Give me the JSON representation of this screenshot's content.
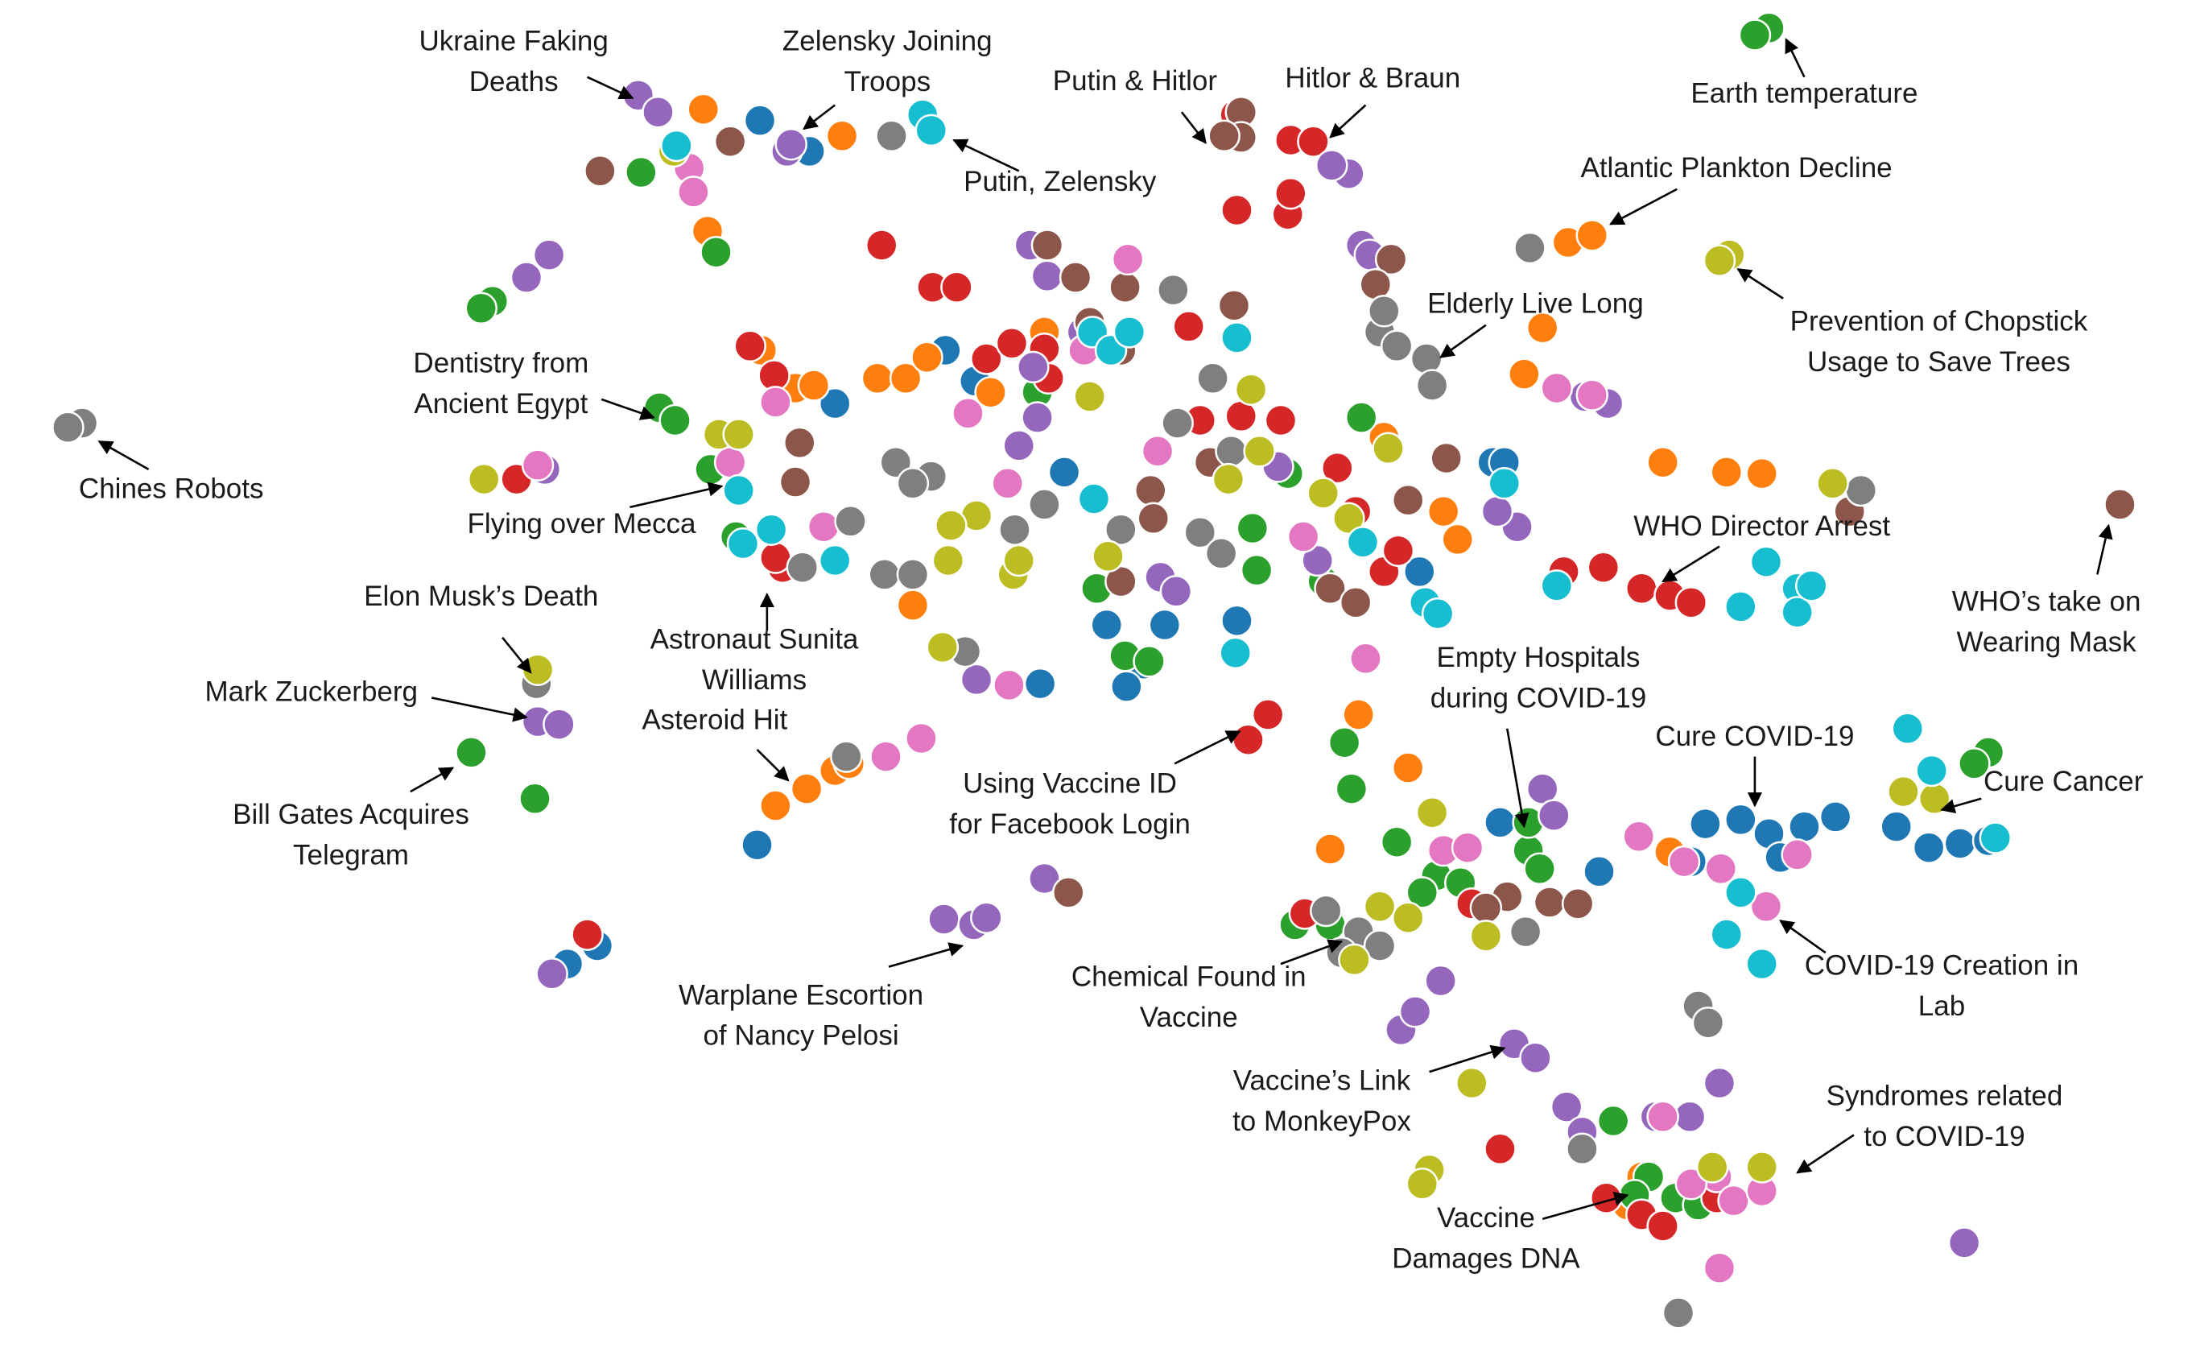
{
  "chart_data": {
    "type": "scatter",
    "series": [
      {
        "color": "#1f77b4",
        "x": [
          537,
          572,
          590,
          668,
          689,
          752,
          823,
          808,
          782,
          796,
          874,
          735,
          535,
          401,
          422,
          1055,
          1063,
          1003,
          1130,
          1060,
          1205,
          1230,
          1250,
          1275,
          1297,
          1340,
          1363,
          1385,
          1405,
          1258,
          1195
        ],
        "values": [
          86,
          108,
          288,
          250,
          272,
          337,
          446,
          474,
          446,
          490,
          443,
          488,
          603,
          688,
          675,
          330,
          330,
          408,
          622,
          587,
          588,
          585,
          595,
          590,
          583,
          590,
          605,
          602,
          600,
          612,
          615
        ]
      },
      {
        "color": "#ff7f0e",
        "x": [
          497,
          595,
          490,
          500,
          1108,
          1125,
          1090,
          1077,
          1175,
          1220,
          1245,
          538,
          562,
          575,
          620,
          640,
          655,
          700,
          738,
          645,
          1020,
          1030,
          548,
          570,
          590,
          600,
          995,
          960,
          940,
          1180,
          1160,
          1150,
          978
        ],
        "values": [
          78,
          97,
          138,
          165,
          173,
          168,
          234,
          267,
          330,
          337,
          338,
          250,
          277,
          275,
          270,
          270,
          255,
          280,
          237,
          432,
          365,
          385,
          575,
          563,
          550,
          545,
          548,
          510,
          606,
          608,
          840,
          860,
          312
        ]
      },
      {
        "color": "#2ca02c",
        "x": [
          1250,
          1240,
          453,
          506,
          348,
          340,
          466,
          477,
          502,
          520,
          733,
          775,
          795,
          812,
          885,
          888,
          910,
          935,
          962,
          950,
          955,
          987,
          1015,
          1032,
          1080,
          1088,
          940,
          915,
          1080,
          1140,
          1165,
          1155,
          1184,
          1200,
          333,
          378,
          1405,
          1395,
          1005
        ],
        "values": [
          20,
          25,
          123,
          180,
          215,
          220,
          291,
          300,
          335,
          383,
          280,
          420,
          468,
          472,
          377,
          407,
          338,
          415,
          298,
          530,
          563,
          601,
          625,
          630,
          607,
          620,
          660,
          660,
          587,
          800,
          840,
          853,
          855,
          860,
          537,
          570,
          537,
          545,
          637
        ]
      },
      {
        "color": "#d62728",
        "x": [
          623,
          659,
          676,
          530,
          547,
          697,
          715,
          738,
          741,
          840,
          848,
          877,
          905,
          874,
          910,
          912,
          873,
          912,
          928,
          945,
          958,
          978,
          988,
          1105,
          1133,
          1160,
          1180,
          1195,
          553,
          548,
          365,
          882,
          896,
          922,
          1060,
          1160,
          1175,
          1135,
          415,
          1040,
          1213
        ],
        "values": [
          175,
          205,
          205,
          247,
          268,
          256,
          245,
          249,
          270,
          233,
          300,
          297,
          300,
          150,
          153,
          138,
          82,
          100,
          101,
          334,
          365,
          408,
          393,
          408,
          405,
          420,
          425,
          430,
          405,
          398,
          342,
          528,
          510,
          652,
          820,
          867,
          875,
          855,
          667,
          645,
          855
        ]
      },
      {
        "color": "#9467bd",
        "x": [
          451,
          465,
          556,
          559,
          388,
          372,
          728,
          740,
          730,
          733,
          720,
          765,
          820,
          831,
          903,
          931,
          962,
          968,
          953,
          941,
          1072,
          1058,
          380,
          395,
          667,
          688,
          697,
          738,
          690,
          1090,
          1098,
          990,
          1000,
          1018,
          1070,
          1085,
          1107,
          1118,
          1170,
          1194,
          1215,
          390,
          1388,
          385,
          1120,
          1136
        ],
        "values": [
          68,
          80,
          108,
          103,
          182,
          198,
          175,
          197,
          262,
          298,
          318,
          237,
          412,
          422,
          333,
          400,
          175,
          182,
          124,
          118,
          376,
          365,
          515,
          517,
          656,
          660,
          655,
          627,
          485,
          563,
          582,
          735,
          722,
          700,
          745,
          755,
          790,
          808,
          797,
          797,
          773,
          695,
          887,
          335,
          283,
          288
        ]
      },
      {
        "color": "#8c564b",
        "x": [
          424,
          516,
          877,
          877,
          865,
          983,
          972,
          740,
          760,
          795,
          770,
          792,
          872,
          855,
          813,
          815,
          565,
          562,
          940,
          958,
          995,
          1022,
          1065,
          1095,
          1115,
          1050,
          755,
          1498,
          1307,
          792
        ],
        "values": [
          122,
          101,
          80,
          98,
          97,
          185,
          203,
          175,
          198,
          205,
          230,
          250,
          218,
          330,
          350,
          370,
          316,
          344,
          420,
          430,
          357,
          327,
          640,
          644,
          645,
          648,
          637,
          360,
          365,
          415
        ]
      },
      {
        "color": "#e377c2",
        "x": [
          487,
          490,
          797,
          766,
          684,
          712,
          818,
          921,
          1100,
          1125,
          380,
          582,
          516,
          548,
          713,
          626,
          651,
          965,
          1020,
          1037,
          1158,
          1190,
          1216,
          1230,
          1248,
          1270,
          1175,
          1213,
          1225,
          1245,
          1215,
          1195
        ],
        "values": [
          120,
          137,
          185,
          250,
          295,
          345,
          322,
          383,
          277,
          282,
          332,
          376,
          330,
          287,
          489,
          540,
          527,
          470,
          607,
          605,
          597,
          615,
          620,
          637,
          647,
          610,
          797,
          840,
          857,
          850,
          905,
          845
        ]
      },
      {
        "color": "#7f7f7f",
        "x": [
          630,
          58,
          48,
          1081,
          829,
          857,
          832,
          870,
          975,
          987,
          1008,
          1012,
          978,
          633,
          658,
          645,
          717,
          738,
          792,
          848,
          863,
          625,
          645,
          601,
          567,
          937,
          960,
          975,
          948,
          1200,
          1207,
          1118,
          1186,
          379,
          1315,
          1078,
          682,
          598
        ],
        "values": [
          97,
          302,
          305,
          177,
          207,
          270,
          302,
          322,
          237,
          247,
          256,
          275,
          222,
          330,
          340,
          345,
          378,
          360,
          378,
          380,
          395,
          410,
          410,
          372,
          405,
          650,
          665,
          675,
          680,
          718,
          730,
          820,
          937,
          488,
          350,
          665,
          465,
          540
        ]
      },
      {
        "color": "#bcbd22",
        "x": [
          1222,
          1215,
          476,
          342,
          508,
          522,
          770,
          690,
          672,
          716,
          720,
          783,
          868,
          884,
          890,
          935,
          953,
          670,
          666,
          957,
          975,
          1012,
          995,
          1050,
          1040,
          1010,
          1005,
          1295,
          1345,
          1367,
          1210,
          1245,
          380,
          981
        ],
        "values": [
          182,
          186,
          108,
          342,
          310,
          310,
          283,
          368,
          375,
          410,
          400,
          397,
          342,
          278,
          322,
          352,
          370,
          400,
          462,
          685,
          647,
          580,
          655,
          668,
          773,
          835,
          845,
          345,
          565,
          570,
          833,
          833,
          478,
          320
        ]
      },
      {
        "color": "#17becf",
        "x": [
          478,
          652,
          658,
          772,
          785,
          798,
          874,
          773,
          873,
          522,
          545,
          525,
          590,
          1100,
          1248,
          1270,
          1270,
          1280,
          1230,
          1007,
          1016,
          963,
          1220,
          1245,
          1230,
          1348,
          1365,
          1410,
          1063
        ],
        "values": [
          104,
          82,
          93,
          237,
          250,
          237,
          241,
          356,
          466,
          350,
          378,
          388,
          400,
          418,
          401,
          420,
          437,
          418,
          433,
          430,
          438,
          387,
          667,
          688,
          637,
          520,
          550,
          598,
          345
        ]
      }
    ],
    "annotations": [
      {
        "lines": [
          "Ukraine Faking",
          "Deaths"
        ],
        "x": 447,
        "y": 70
      },
      {
        "lines": [
          "Zelensky Joining",
          "Troops"
        ],
        "x": 568,
        "y": 92
      },
      {
        "lines": [
          "Putin & Hitlor"
        ],
        "x": 852,
        "y": 102
      },
      {
        "lines": [
          "Hitlor & Braun"
        ],
        "x": 940,
        "y": 98
      },
      {
        "lines": [
          "Putin, Zelensky"
        ],
        "x": 674,
        "y": 100
      },
      {
        "lines": [
          "Earth temperature"
        ],
        "x": 1262,
        "y": 28
      },
      {
        "lines": [
          "Atlantic Plankton Decline"
        ],
        "x": 1138,
        "y": 160
      },
      {
        "lines": [
          "Prevention of Chopstick",
          "Usage to Save Trees"
        ],
        "x": 1228,
        "y": 192
      },
      {
        "lines": [
          "Elderly Live Long"
        ],
        "x": 1018,
        "y": 255
      },
      {
        "lines": [
          "Dentistry from",
          "Ancient Egypt"
        ],
        "x": 462,
        "y": 298
      },
      {
        "lines": [
          "Chines Robots"
        ],
        "x": 70,
        "y": 315
      },
      {
        "lines": [
          "Flying over Mecca"
        ],
        "x": 510,
        "y": 347
      },
      {
        "lines": [
          "WHO Director Arrest"
        ],
        "x": 1175,
        "y": 415
      },
      {
        "lines": [
          "WHO’s take on",
          "Wearing Mask"
        ],
        "x": 1490,
        "y": 375
      },
      {
        "lines": [
          "Elon Musk’s Death"
        ],
        "x": 375,
        "y": 480
      },
      {
        "lines": [
          "Astronaut Sunita",
          "Williams"
        ],
        "x": 542,
        "y": 424
      },
      {
        "lines": [
          "Mark Zuckerberg"
        ],
        "x": 372,
        "y": 512
      },
      {
        "lines": [
          "Empty Hospitals",
          "during COVID-19"
        ],
        "x": 1077,
        "y": 590
      },
      {
        "lines": [
          "Asteroid Hit"
        ],
        "x": 557,
        "y": 557
      },
      {
        "lines": [
          "Cure COVID-19"
        ],
        "x": 1240,
        "y": 575
      },
      {
        "lines": [
          "Cure Cancer"
        ],
        "x": 1372,
        "y": 578
      },
      {
        "lines": [
          "Using Vaccine ID",
          "for Facebook Login"
        ],
        "x": 876,
        "y": 522
      },
      {
        "lines": [
          "Bill Gates Acquires",
          "Telegram"
        ],
        "x": 320,
        "y": 548
      },
      {
        "lines": [
          "COVID-19 Creation in",
          "Lab"
        ],
        "x": 1258,
        "y": 657
      },
      {
        "lines": [
          "Chemical Found in",
          "Vaccine"
        ],
        "x": 948,
        "y": 672
      },
      {
        "lines": [
          "Warplane Escortion",
          "of Nancy Pelosi"
        ],
        "x": 680,
        "y": 675
      },
      {
        "lines": [
          "Vaccine’s Link",
          "to MonkeyPox"
        ],
        "x": 1063,
        "y": 748
      },
      {
        "lines": [
          "Syndromes related",
          "to COVID-19"
        ],
        "x": 1270,
        "y": 837
      },
      {
        "lines": [
          "Vaccine",
          "Damages DNA"
        ],
        "x": 1150,
        "y": 853
      }
    ]
  }
}
